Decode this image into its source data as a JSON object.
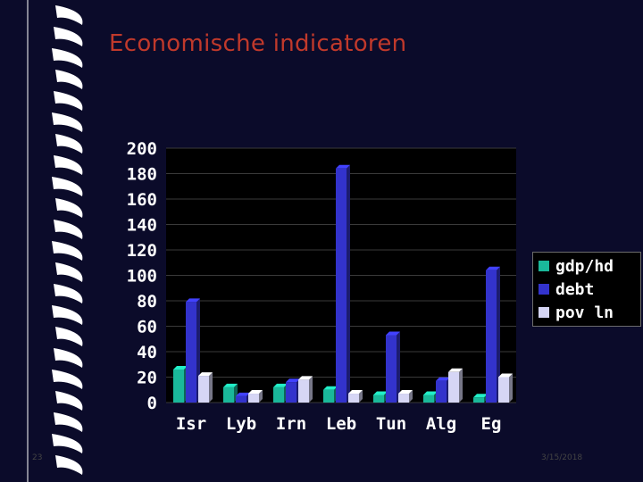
{
  "title": "Economische indicatoren",
  "slide_number": "23",
  "date": "3/15/2018",
  "colors": {
    "background": "#0b0b2a",
    "title": "#c0392b",
    "gdp": "#1ab89a",
    "debt": "#3333cc",
    "pov": "#d6d6f5"
  },
  "chart_data": {
    "type": "bar",
    "categories": [
      "Isr",
      "Lyb",
      "Irn",
      "Leb",
      "Tun",
      "Alg",
      "Eg"
    ],
    "series": [
      {
        "name": "gdp/hd",
        "color": "#1ab89a",
        "values": [
          26,
          12,
          12,
          10,
          6,
          6,
          4
        ]
      },
      {
        "name": "debt",
        "color": "#3333cc",
        "values": [
          79,
          5,
          16,
          184,
          53,
          17,
          104
        ]
      },
      {
        "name": "pov ln",
        "color": "#d6d6f5",
        "values": [
          21,
          7,
          18,
          7,
          7,
          24,
          20
        ]
      }
    ],
    "yticks": [
      "0",
      "20",
      "40",
      "60",
      "80",
      "100",
      "120",
      "140",
      "160",
      "180",
      "200"
    ],
    "ylim": [
      0,
      200
    ],
    "grid": true,
    "legend_position": "right",
    "three_d": true
  }
}
